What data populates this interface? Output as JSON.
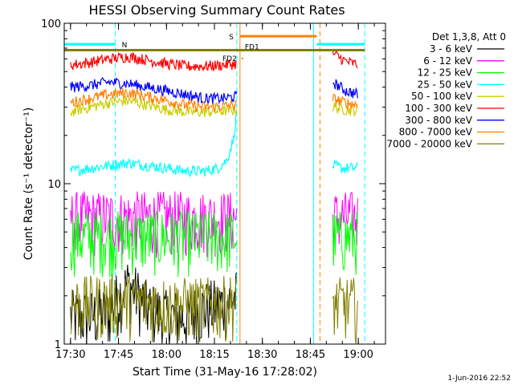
{
  "chart_data": {
    "type": "line",
    "title": "HESSI Observing Summary Count Rates",
    "xlabel": "Start Time (31-May-16 17:28:02)",
    "ylabel": "Count Rate (s⁻¹ detector⁻¹)",
    "y_scale": "log",
    "ylim": [
      1,
      100
    ],
    "xlim": [
      "17:28:02",
      "19:08:30"
    ],
    "x_tick_labels": [
      "17:30",
      "17:45",
      "18:00",
      "18:15",
      "18:30",
      "18:45",
      "19:00"
    ],
    "y_tick_labels": [
      "1",
      "10",
      "100"
    ],
    "legend_title": "Det 1,3,8, Att 0",
    "legend_position": "right",
    "series": [
      {
        "name": "3 - 6 keV",
        "color": "#000000",
        "segments": [
          {
            "x": [
              "17:30",
              "17:36",
              "17:42",
              "17:48",
              "17:54",
              "18:00",
              "18:06",
              "18:12",
              "18:18",
              "18:22"
            ],
            "y": [
              1.5,
              1.5,
              1.6,
              2.4,
              1.7,
              1.5,
              1.5,
              1.7,
              1.8,
              2.0
            ]
          }
        ]
      },
      {
        "name": "6 - 12 keV",
        "color": "#ff00ff",
        "segments": [
          {
            "x": [
              "17:30",
              "17:45",
              "18:00",
              "18:15",
              "18:22"
            ],
            "y": [
              6.2,
              6.2,
              6.2,
              6.2,
              6.2
            ]
          },
          {
            "x": [
              "18:52",
              "18:58",
              "19:00"
            ],
            "y": [
              6.2,
              6.2,
              6.2
            ]
          }
        ]
      },
      {
        "name": "12 - 25 keV",
        "color": "#00ff00",
        "segments": [
          {
            "x": [
              "17:30",
              "17:45",
              "18:00",
              "18:15",
              "18:22"
            ],
            "y": [
              4.7,
              4.7,
              4.7,
              4.7,
              4.7
            ]
          },
          {
            "x": [
              "18:52",
              "18:58",
              "19:00"
            ],
            "y": [
              4.7,
              4.7,
              4.7
            ]
          }
        ]
      },
      {
        "name": "25 - 50 keV",
        "color": "#00ffff",
        "segments": [
          {
            "x": [
              "17:30",
              "17:36",
              "17:42",
              "17:48",
              "17:54",
              "18:00",
              "18:06",
              "18:12",
              "18:16",
              "18:19",
              "18:21",
              "18:22"
            ],
            "y": [
              12,
              12.5,
              13,
              13.5,
              13,
              12.5,
              12,
              12,
              12.5,
              14,
              19,
              28
            ]
          },
          {
            "x": [
              "18:52",
              "18:55",
              "18:58",
              "19:00"
            ],
            "y": [
              13,
              12.5,
              12.5,
              12.5
            ]
          }
        ]
      },
      {
        "name": "50 - 100 keV",
        "color": "#cccc00",
        "segments": [
          {
            "x": [
              "17:30",
              "17:36",
              "17:42",
              "17:48",
              "17:54",
              "18:00",
              "18:06",
              "18:12",
              "18:18",
              "18:22"
            ],
            "y": [
              28,
              30,
              32,
              33,
              31,
              29,
              28,
              28,
              28.5,
              29
            ]
          },
          {
            "x": [
              "18:52",
              "18:56",
              "19:00"
            ],
            "y": [
              30,
              29,
              28.5
            ]
          }
        ]
      },
      {
        "name": "100 - 300 keV",
        "color": "#ff0000",
        "segments": [
          {
            "x": [
              "17:30",
              "17:36",
              "17:42",
              "17:48",
              "17:54",
              "18:00",
              "18:06",
              "18:12",
              "18:18",
              "18:22"
            ],
            "y": [
              55,
              57,
              60,
              62,
              59,
              56,
              54,
              54,
              55,
              56
            ]
          },
          {
            "x": [
              "18:52",
              "18:56",
              "19:00"
            ],
            "y": [
              65,
              58,
              55
            ]
          }
        ]
      },
      {
        "name": "300 - 800 keV",
        "color": "#0000ff",
        "segments": [
          {
            "x": [
              "17:30",
              "17:36",
              "17:42",
              "17:48",
              "17:54",
              "18:00",
              "18:06",
              "18:12",
              "18:18",
              "18:22"
            ],
            "y": [
              40,
              41,
              43,
              42,
              40,
              38,
              36,
              34,
              34,
              35
            ]
          },
          {
            "x": [
              "18:52",
              "18:56",
              "19:00"
            ],
            "y": [
              43,
              38,
              36
            ]
          }
        ]
      },
      {
        "name": "800 - 7000 keV",
        "color": "#ff8000",
        "segments": [
          {
            "x": [
              "17:30",
              "17:36",
              "17:42",
              "17:48",
              "17:54",
              "18:00",
              "18:06",
              "18:12",
              "18:18",
              "18:22"
            ],
            "y": [
              32,
              34,
              36,
              37,
              35,
              33,
              31,
              30,
              30.5,
              31
            ]
          },
          {
            "x": [
              "18:52",
              "18:56",
              "19:00"
            ],
            "y": [
              34,
              32,
              31
            ]
          }
        ]
      },
      {
        "name": "7000 - 20000 keV",
        "color": "#808000",
        "segments": [
          {
            "x": [
              "17:30",
              "17:45",
              "18:00",
              "18:15",
              "18:22"
            ],
            "y": [
              1.8,
              1.9,
              1.8,
              1.8,
              1.9
            ]
          },
          {
            "x": [
              "18:52",
              "18:58",
              "19:00"
            ],
            "y": [
              1.8,
              1.8,
              1.8
            ]
          }
        ]
      }
    ],
    "annotations": [
      {
        "label": "N",
        "color": "#00ffff",
        "x_start": "17:28",
        "x_end": "17:44",
        "y": 74
      },
      {
        "label": "",
        "color": "#00ffff",
        "x_start": "18:47",
        "x_end": "19:02",
        "y": 74
      },
      {
        "label": "S",
        "color": "#ff8000",
        "x_start": "18:23",
        "x_end": "18:47",
        "y": 83
      },
      {
        "label": "FD1",
        "color": "#808000",
        "x_start": "17:28",
        "x_end": "19:02",
        "y": 68
      },
      {
        "label": "FD2",
        "color": "#808000",
        "x": "18:23",
        "y": 61
      }
    ],
    "vertical_lines": [
      {
        "x": "17:28",
        "color": "#00ffff",
        "style": "solid"
      },
      {
        "x": "17:44",
        "color": "#00ffff",
        "style": "dashed"
      },
      {
        "x": "18:22",
        "color": "#00ffff",
        "style": "dashed"
      },
      {
        "x": "18:23",
        "color": "#ff8000",
        "style": "solid"
      },
      {
        "x": "18:46",
        "color": "#00ffff",
        "style": "solid"
      },
      {
        "x": "18:48",
        "color": "#ff8000",
        "style": "dashed"
      },
      {
        "x": "19:02",
        "color": "#00ffff",
        "style": "dashed"
      }
    ]
  },
  "footer": {
    "timestamp": "1-Jun-2016 22:52"
  }
}
